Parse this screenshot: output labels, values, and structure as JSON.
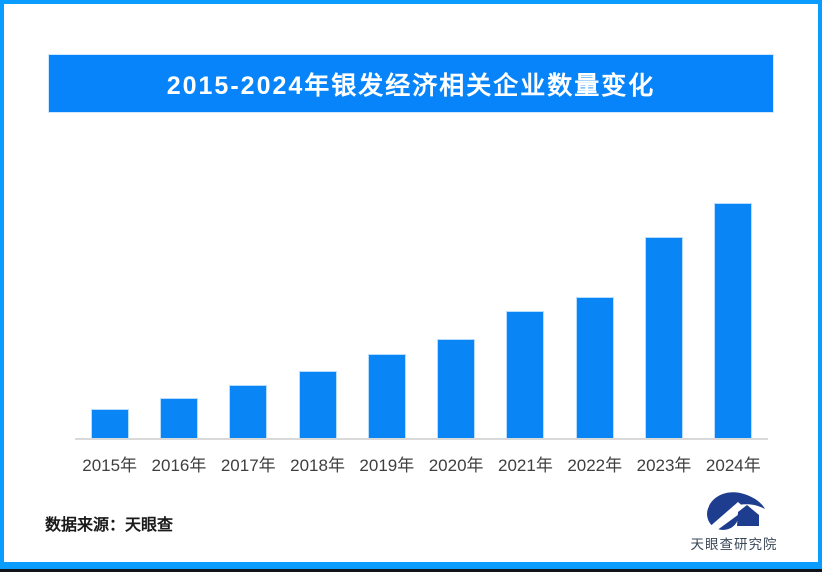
{
  "page": {
    "background_color": "#ffffff",
    "frame_color": "#0a9dff",
    "bottom_edge_color": "#111418"
  },
  "title_banner": {
    "text": "2015-2024年银发经济相关企业数量变化",
    "bg_color": "#0884fa",
    "text_color": "#ffffff"
  },
  "chart_data": {
    "type": "bar",
    "title": "2015-2024年银发经济相关企业数量变化",
    "categories": [
      "2015年",
      "2016年",
      "2017年",
      "2018年",
      "2019年",
      "2020年",
      "2021年",
      "2022年",
      "2023年",
      "2024年"
    ],
    "values": [
      12.3,
      17.0,
      22.6,
      28.5,
      35.7,
      42.1,
      54.0,
      60.0,
      85.5,
      100.0
    ],
    "values_unit": "relative bar height, % of tallest bar (no numeric axis shown in image)",
    "xlabel": "",
    "ylabel": "",
    "y_axis_visible": false,
    "gridlines": false,
    "legend_position": "none",
    "bar_color": "#0a85f5",
    "axis_line_color": "#d9d9d9",
    "tick_label_color": "#3f3f3f"
  },
  "footer": {
    "source_text": "数据来源：天眼查",
    "brand_text": "天眼查研究院",
    "logo_icon": "tianyancha-eye-logo",
    "logo_color": "#1e3d8f"
  }
}
